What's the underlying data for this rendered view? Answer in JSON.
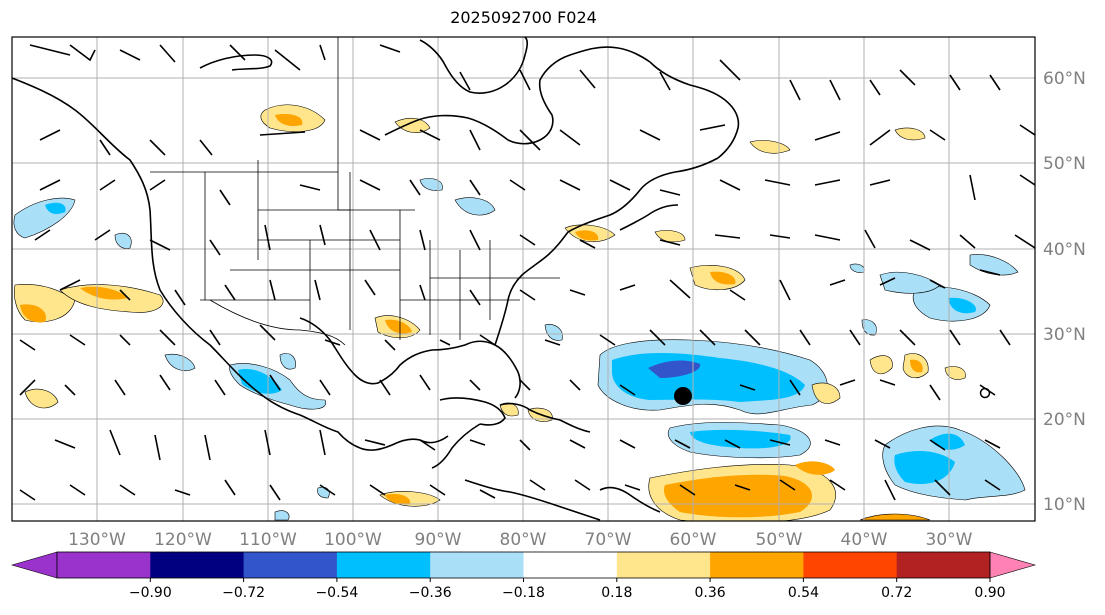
{
  "title": "2025092700 F024",
  "map": {
    "lon_labels": [
      "130°W",
      "120°W",
      "110°W",
      "100°W",
      "90°W",
      "80°W",
      "70°W",
      "60°W",
      "50°W",
      "40°W",
      "30°W"
    ],
    "lat_labels": [
      "60°N",
      "50°N",
      "40°N",
      "30°N",
      "20°N",
      "10°N"
    ],
    "storm_marker": {
      "lon": -59.7,
      "lat": 23.0
    }
  },
  "colorbar": {
    "labels": [
      "−0.90",
      "−0.72",
      "−0.54",
      "−0.36",
      "−0.18",
      "0.18",
      "0.36",
      "0.54",
      "0.72",
      "0.90"
    ],
    "colors": {
      "under": "#9933cc",
      "bins": [
        "#9933cc",
        "#000080",
        "#3355cc",
        "#00bfff",
        "#aadff8",
        "#ffffff",
        "#ffe68c",
        "#ffa500",
        "#ff4500",
        "#b22222"
      ],
      "over": "#ff82b4"
    }
  }
}
